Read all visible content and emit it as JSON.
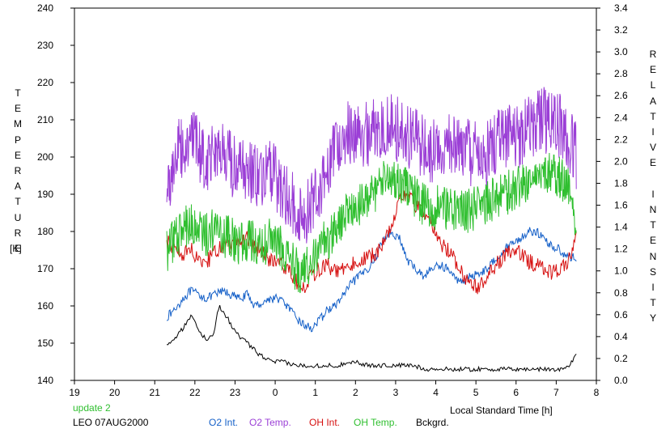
{
  "chart_data": {
    "type": "line",
    "left_axis_label": "TEMPERATURE",
    "left_axis_unit": "[K]",
    "right_axis_label": "RELATIVE INTENSITY",
    "xlabel": "Local Standard Time [h]",
    "x_ticks": [
      "19",
      "20",
      "21",
      "22",
      "23",
      "0",
      "1",
      "2",
      "3",
      "4",
      "5",
      "6",
      "7",
      "8"
    ],
    "y_left_ticks": [
      "140",
      "150",
      "160",
      "170",
      "180",
      "190",
      "200",
      "210",
      "220",
      "230",
      "240"
    ],
    "y_right_ticks": [
      "0.0",
      "0.2",
      "0.4",
      "0.6",
      "0.8",
      "1.0",
      "1.2",
      "1.4",
      "1.6",
      "1.8",
      "2.0",
      "2.2",
      "2.4",
      "2.6",
      "2.8",
      "3.0",
      "3.2",
      "3.4"
    ],
    "xlim": [
      19,
      32
    ],
    "ylim_left": [
      140,
      240
    ],
    "ylim_right": [
      0,
      3.4
    ],
    "grid": false,
    "annotation_update": "update 2",
    "annotation_station": "LEO 07AUG2000",
    "legend_position": "bottom",
    "series": [
      {
        "name": "O2 Int.",
        "color": "#1560c8",
        "x": [
          21.3,
          21.5,
          21.7,
          21.9,
          22.1,
          22.3,
          22.5,
          22.7,
          22.9,
          23.1,
          23.3,
          23.5,
          23.7,
          23.9,
          24.1,
          24.3,
          24.5,
          24.7,
          24.9,
          25.1,
          25.3,
          25.5,
          25.7,
          25.9,
          26.1,
          26.3,
          26.5,
          26.7,
          26.9,
          27.1,
          27.3,
          27.5,
          27.7,
          27.9,
          28.1,
          28.3,
          28.5,
          28.7,
          28.9,
          29.1,
          29.3,
          29.5,
          29.7,
          29.9,
          30.1,
          30.3,
          30.5,
          30.7,
          30.9,
          31.1,
          31.3,
          31.5
        ],
        "y": [
          157,
          159,
          162,
          164,
          163,
          162,
          163,
          164,
          163,
          162,
          163,
          160,
          161,
          162,
          162,
          160,
          157,
          155,
          154,
          156,
          159,
          160,
          163,
          166,
          168,
          170,
          173,
          178,
          180,
          178,
          172,
          170,
          168,
          170,
          171,
          170,
          167,
          167,
          168,
          169,
          170,
          173,
          175,
          177,
          178,
          180,
          180,
          178,
          176,
          175,
          173,
          173
        ]
      },
      {
        "name": "O2 Temp.",
        "color": "#9b3fd6",
        "x": [
          21.3,
          21.5,
          21.7,
          21.9,
          22.1,
          22.3,
          22.5,
          22.7,
          22.9,
          23.1,
          23.3,
          23.5,
          23.7,
          23.9,
          24.1,
          24.3,
          24.5,
          24.7,
          24.9,
          25.1,
          25.3,
          25.5,
          25.7,
          25.9,
          26.1,
          26.3,
          26.5,
          26.7,
          26.9,
          27.1,
          27.3,
          27.5,
          27.7,
          27.9,
          28.1,
          28.3,
          28.5,
          28.7,
          28.9,
          29.1,
          29.3,
          29.5,
          29.7,
          29.9,
          30.1,
          30.3,
          30.5,
          30.7,
          30.9,
          31.1,
          31.3,
          31.5
        ],
        "y": [
          190,
          200,
          203,
          205,
          202,
          199,
          203,
          200,
          198,
          196,
          197,
          195,
          194,
          196,
          193,
          190,
          186,
          184,
          188,
          192,
          197,
          203,
          206,
          207,
          205,
          206,
          208,
          209,
          208,
          207,
          205,
          204,
          203,
          201,
          202,
          203,
          204,
          202,
          201,
          200,
          201,
          204,
          206,
          207,
          206,
          208,
          209,
          210,
          209,
          208,
          205,
          200
        ]
      },
      {
        "name": "OH Int.",
        "color": "#d61010",
        "x": [
          21.3,
          21.5,
          21.7,
          21.9,
          22.1,
          22.3,
          22.5,
          22.7,
          22.9,
          23.1,
          23.3,
          23.5,
          23.7,
          23.9,
          24.1,
          24.3,
          24.5,
          24.7,
          24.9,
          25.1,
          25.3,
          25.5,
          25.7,
          25.9,
          26.1,
          26.3,
          26.5,
          26.7,
          26.9,
          27.1,
          27.3,
          27.5,
          27.7,
          27.9,
          28.1,
          28.3,
          28.5,
          28.7,
          28.9,
          29.1,
          29.3,
          29.5,
          29.7,
          29.9,
          30.1,
          30.3,
          30.5,
          30.7,
          30.9,
          31.1,
          31.3,
          31.5
        ],
        "y": [
          177,
          176,
          174,
          175,
          173,
          172,
          174,
          176,
          176,
          177,
          178,
          176,
          174,
          172,
          172,
          170,
          167,
          165,
          168,
          170,
          171,
          169,
          170,
          171,
          172,
          173,
          174,
          177,
          182,
          189,
          190,
          187,
          185,
          181,
          177,
          175,
          172,
          168,
          166,
          165,
          168,
          171,
          173,
          175,
          174,
          172,
          171,
          170,
          169,
          170,
          172,
          178
        ]
      },
      {
        "name": "OH Temp.",
        "color": "#2fbf2f",
        "x": [
          21.3,
          21.5,
          21.7,
          21.9,
          22.1,
          22.3,
          22.5,
          22.7,
          22.9,
          23.1,
          23.3,
          23.5,
          23.7,
          23.9,
          24.1,
          24.3,
          24.5,
          24.7,
          24.9,
          25.1,
          25.3,
          25.5,
          25.7,
          25.9,
          26.1,
          26.3,
          26.5,
          26.7,
          26.9,
          27.1,
          27.3,
          27.5,
          27.7,
          27.9,
          28.1,
          28.3,
          28.5,
          28.7,
          28.9,
          29.1,
          29.3,
          29.5,
          29.7,
          29.9,
          30.1,
          30.3,
          30.5,
          30.7,
          30.9,
          31.1,
          31.3,
          31.5
        ],
        "y": [
          175,
          178,
          181,
          182,
          180,
          179,
          181,
          179,
          178,
          177,
          178,
          177,
          176,
          178,
          176,
          174,
          170,
          169,
          173,
          176,
          178,
          181,
          184,
          186,
          187,
          189,
          191,
          193,
          195,
          194,
          192,
          189,
          187,
          186,
          187,
          186,
          186,
          185,
          186,
          187,
          188,
          189,
          190,
          191,
          192,
          194,
          195,
          196,
          195,
          194,
          192,
          182
        ]
      },
      {
        "name": "Bckgrd.",
        "color": "#000000",
        "x": [
          21.3,
          21.5,
          21.7,
          21.9,
          22.0,
          22.1,
          22.3,
          22.45,
          22.6,
          22.8,
          23.0,
          23.3,
          23.6,
          23.9,
          24.2,
          24.5,
          24.8,
          25.0,
          25.3,
          25.6,
          25.8,
          26.0,
          26.3,
          26.6,
          27.0,
          27.4,
          27.8,
          28.2,
          28.6,
          29.0,
          29.4,
          29.8,
          30.2,
          30.6,
          31.0,
          31.2,
          31.3,
          31.4,
          31.5
        ],
        "y": [
          150,
          151,
          154,
          157,
          156,
          153,
          151,
          152,
          160,
          157,
          153,
          150,
          147,
          145,
          145,
          144,
          144,
          144,
          144,
          144,
          145,
          145,
          144,
          144,
          144,
          144,
          143,
          143,
          143,
          143,
          143,
          143,
          143,
          143,
          143,
          143,
          144,
          145,
          147
        ]
      }
    ]
  }
}
